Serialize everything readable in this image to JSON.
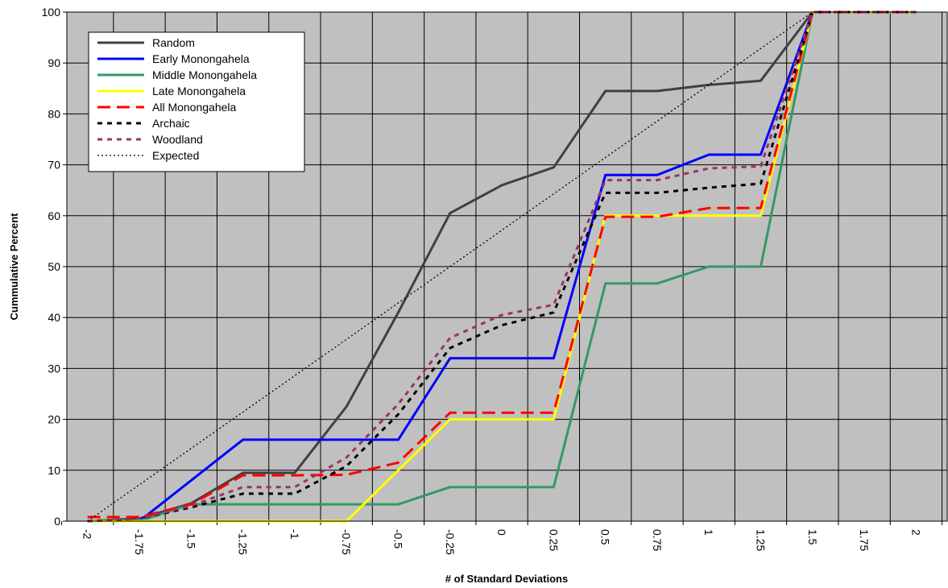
{
  "chart_data": {
    "type": "line",
    "title": "",
    "xlabel": "# of Standard Deviations",
    "ylabel": "Cummulative Percent",
    "x": [
      -2,
      -1.75,
      -1.5,
      -1.25,
      -1,
      -0.75,
      -0.5,
      -0.25,
      0,
      0.25,
      0.5,
      0.75,
      1,
      1.25,
      1.5,
      1.75,
      2
    ],
    "x_tick_labels": [
      "-2",
      "-1.75",
      "-1.5",
      "-1.25",
      "-1",
      "-0.75",
      "-0.5",
      "-0.25",
      "0",
      "0.25",
      "0.5",
      "0.75",
      "1",
      "1.25",
      "1.5",
      "1.75",
      "2"
    ],
    "xlim": [
      -2.1,
      2.15
    ],
    "ylim": [
      0,
      100
    ],
    "y_ticks": [
      0,
      10,
      20,
      30,
      40,
      50,
      60,
      70,
      80,
      90,
      100
    ],
    "grid": true,
    "plot_background": "#c0c0c0",
    "legend_position": "top-left",
    "series": [
      {
        "name": "Random",
        "color": "#404040",
        "dash": "solid",
        "width": 3,
        "points": [
          [
            -2,
            0
          ],
          [
            -1.75,
            0.5
          ],
          [
            -1.5,
            3.5
          ],
          [
            -1.25,
            9.5
          ],
          [
            -1,
            9.5
          ],
          [
            -0.75,
            22.5
          ],
          [
            -0.5,
            41
          ],
          [
            -0.25,
            60.5
          ],
          [
            0,
            66
          ],
          [
            0.25,
            69.5
          ],
          [
            0.5,
            84.5
          ],
          [
            0.75,
            84.5
          ],
          [
            1,
            85.7
          ],
          [
            1.25,
            86.5
          ],
          [
            1.5,
            100
          ],
          [
            1.75,
            100
          ],
          [
            2,
            100
          ]
        ]
      },
      {
        "name": "Early Monongahela",
        "color": "#0000ff",
        "dash": "solid",
        "width": 3,
        "points": [
          [
            -2,
            0
          ],
          [
            -1.75,
            0
          ],
          [
            -1.25,
            16
          ],
          [
            -1,
            16
          ],
          [
            -0.75,
            16
          ],
          [
            -0.5,
            16
          ],
          [
            -0.25,
            32
          ],
          [
            0,
            32
          ],
          [
            0.25,
            32
          ],
          [
            0.5,
            68
          ],
          [
            0.75,
            68
          ],
          [
            1,
            72
          ],
          [
            1.25,
            72
          ],
          [
            1.5,
            100
          ],
          [
            1.75,
            100
          ],
          [
            2,
            100
          ]
        ]
      },
      {
        "name": "Middle Monongahela",
        "color": "#339966",
        "dash": "solid",
        "width": 3,
        "points": [
          [
            -2,
            0
          ],
          [
            -1.75,
            0
          ],
          [
            -1.5,
            3.3
          ],
          [
            -1.25,
            3.3
          ],
          [
            -1,
            3.3
          ],
          [
            -0.75,
            3.3
          ],
          [
            -0.5,
            3.3
          ],
          [
            -0.25,
            6.7
          ],
          [
            0,
            6.7
          ],
          [
            0.25,
            6.7
          ],
          [
            0.5,
            46.7
          ],
          [
            0.75,
            46.7
          ],
          [
            1,
            50
          ],
          [
            1.25,
            50
          ],
          [
            1.5,
            100
          ],
          [
            1.75,
            100
          ],
          [
            2,
            100
          ]
        ]
      },
      {
        "name": "Late Monongahela",
        "color": "#ffff00",
        "dash": "solid",
        "width": 3,
        "points": [
          [
            -2,
            0
          ],
          [
            -1.75,
            0
          ],
          [
            -1.5,
            0
          ],
          [
            -1.25,
            0
          ],
          [
            -1,
            0
          ],
          [
            -0.75,
            0
          ],
          [
            -0.5,
            10
          ],
          [
            -0.25,
            20
          ],
          [
            0,
            20
          ],
          [
            0.25,
            20
          ],
          [
            0.5,
            60
          ],
          [
            0.75,
            60
          ],
          [
            1,
            60
          ],
          [
            1.25,
            60
          ],
          [
            1.5,
            100
          ],
          [
            1.75,
            100
          ],
          [
            2,
            100
          ]
        ]
      },
      {
        "name": "All Monongahela",
        "color": "#ff0000",
        "dash": "long-dash",
        "width": 3,
        "points": [
          [
            -2,
            0.8
          ],
          [
            -1.75,
            0.8
          ],
          [
            -1.5,
            3.3
          ],
          [
            -1.25,
            9
          ],
          [
            -1,
            9
          ],
          [
            -0.75,
            9.1
          ],
          [
            -0.5,
            11.5
          ],
          [
            -0.25,
            21.3
          ],
          [
            0,
            21.3
          ],
          [
            0.25,
            21.3
          ],
          [
            0.5,
            59.8
          ],
          [
            0.75,
            59.8
          ],
          [
            1,
            61.5
          ],
          [
            1.25,
            61.5
          ],
          [
            1.5,
            100
          ],
          [
            1.75,
            100
          ],
          [
            2,
            100
          ]
        ]
      },
      {
        "name": "Archaic",
        "color": "#000000",
        "dash": "short-dash",
        "width": 3,
        "points": [
          [
            -2,
            0
          ],
          [
            -1.75,
            0.5
          ],
          [
            -1.5,
            2.7
          ],
          [
            -1.25,
            5.4
          ],
          [
            -1,
            5.4
          ],
          [
            -0.75,
            10.8
          ],
          [
            -0.5,
            21
          ],
          [
            -0.25,
            34
          ],
          [
            0,
            38.5
          ],
          [
            0.25,
            41
          ],
          [
            0.5,
            64.5
          ],
          [
            0.75,
            64.5
          ],
          [
            1,
            65.5
          ],
          [
            1.25,
            66.3
          ],
          [
            1.5,
            100
          ],
          [
            1.75,
            100
          ],
          [
            2,
            100
          ]
        ]
      },
      {
        "name": "Woodland",
        "color": "#993366",
        "dash": "short-dash",
        "width": 3,
        "points": [
          [
            -2,
            0
          ],
          [
            -1.75,
            0.5
          ],
          [
            -1.5,
            3
          ],
          [
            -1.25,
            6.7
          ],
          [
            -1,
            6.7
          ],
          [
            -0.75,
            12.5
          ],
          [
            -0.5,
            23
          ],
          [
            -0.25,
            36
          ],
          [
            0,
            40.5
          ],
          [
            0.25,
            42.5
          ],
          [
            0.5,
            67
          ],
          [
            0.75,
            67
          ],
          [
            1,
            69.3
          ],
          [
            1.25,
            69.7
          ],
          [
            1.5,
            100
          ],
          [
            1.75,
            100
          ],
          [
            2,
            100
          ]
        ]
      },
      {
        "name": "Expected",
        "color": "#000000",
        "dash": "dotted",
        "width": 1.3,
        "points": [
          [
            -2,
            0
          ],
          [
            1.5,
            100
          ],
          [
            2,
            100
          ]
        ]
      }
    ]
  }
}
